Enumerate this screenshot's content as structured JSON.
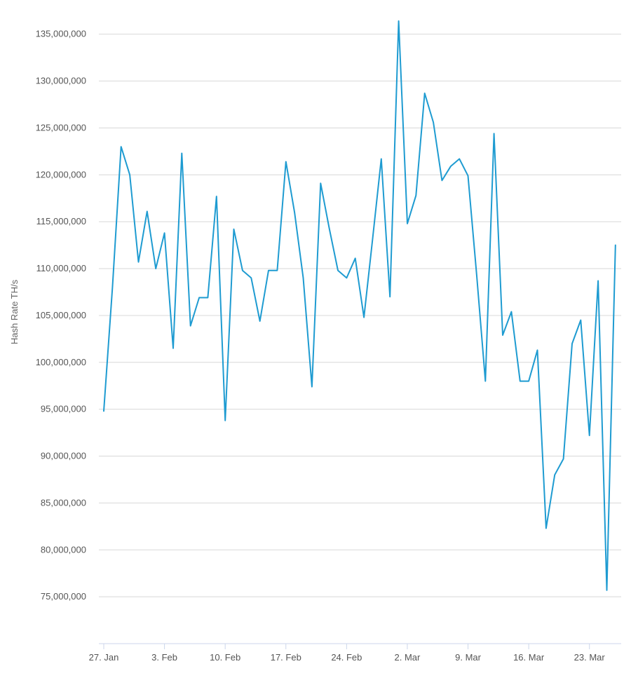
{
  "chart_data": {
    "type": "line",
    "title": "",
    "xlabel": "",
    "ylabel": "Hash Rate TH/s",
    "ylim": [
      70000000,
      137000000
    ],
    "xlim": [
      "2020-01-27",
      "2020-03-27"
    ],
    "y_ticks": [
      75000000,
      80000000,
      85000000,
      90000000,
      95000000,
      100000000,
      105000000,
      110000000,
      115000000,
      120000000,
      125000000,
      130000000,
      135000000
    ],
    "y_tick_labels": [
      "75,000,000",
      "80,000,000",
      "85,000,000",
      "90,000,000",
      "95,000,000",
      "100,000,000",
      "105,000,000",
      "110,000,000",
      "115,000,000",
      "120,000,000",
      "125,000,000",
      "130,000,000",
      "135,000,000"
    ],
    "x_ticks": [
      "2020-01-27",
      "2020-02-03",
      "2020-02-10",
      "2020-02-17",
      "2020-02-24",
      "2020-03-02",
      "2020-03-09",
      "2020-03-16",
      "2020-03-23"
    ],
    "x_tick_labels": [
      "27. Jan",
      "3. Feb",
      "10. Feb",
      "17. Feb",
      "24. Feb",
      "2. Mar",
      "9. Mar",
      "16. Mar",
      "23. Mar"
    ],
    "grid": true,
    "legend": "none",
    "colors": {
      "line": "#1e9bd1",
      "grid": "#d8d8d8",
      "axis": "#ccd6eb",
      "tick": "#ccd6eb"
    },
    "series": [
      {
        "x": [
          "2020-01-27",
          "2020-01-28",
          "2020-01-29",
          "2020-01-30",
          "2020-01-31",
          "2020-02-01",
          "2020-02-02",
          "2020-02-03",
          "2020-02-04",
          "2020-02-05",
          "2020-02-06",
          "2020-02-07",
          "2020-02-08",
          "2020-02-09",
          "2020-02-10",
          "2020-02-11",
          "2020-02-12",
          "2020-02-13",
          "2020-02-14",
          "2020-02-15",
          "2020-02-16",
          "2020-02-17",
          "2020-02-18",
          "2020-02-19",
          "2020-02-20",
          "2020-02-21",
          "2020-02-22",
          "2020-02-23",
          "2020-02-24",
          "2020-02-25",
          "2020-02-26",
          "2020-02-27",
          "2020-02-28",
          "2020-02-29",
          "2020-03-01",
          "2020-03-02",
          "2020-03-03",
          "2020-03-04",
          "2020-03-05",
          "2020-03-06",
          "2020-03-07",
          "2020-03-08",
          "2020-03-09",
          "2020-03-10",
          "2020-03-11",
          "2020-03-12",
          "2020-03-13",
          "2020-03-14",
          "2020-03-15",
          "2020-03-16",
          "2020-03-17",
          "2020-03-18",
          "2020-03-19",
          "2020-03-20",
          "2020-03-21",
          "2020-03-22",
          "2020-03-23",
          "2020-03-24",
          "2020-03-25",
          "2020-03-26"
        ],
        "y": [
          94800000,
          108000000,
          123000000,
          120000000,
          110700000,
          116100000,
          110000000,
          113800000,
          101500000,
          122300000,
          103900000,
          106900000,
          106900000,
          117700000,
          93800000,
          114200000,
          109800000,
          109000000,
          104400000,
          109800000,
          109800000,
          121400000,
          116000000,
          109000000,
          97400000,
          119100000,
          114300000,
          109800000,
          109000000,
          111100000,
          104800000,
          113200000,
          121700000,
          107000000,
          136400000,
          114800000,
          117800000,
          128700000,
          125600000,
          119400000,
          120900000,
          121700000,
          119900000,
          109300000,
          98000000,
          124400000,
          102900000,
          105400000,
          98000000,
          98000000,
          101300000,
          82300000,
          88000000,
          89700000,
          102000000,
          104500000,
          92200000,
          108700000,
          75700000,
          112500000
        ]
      }
    ]
  }
}
